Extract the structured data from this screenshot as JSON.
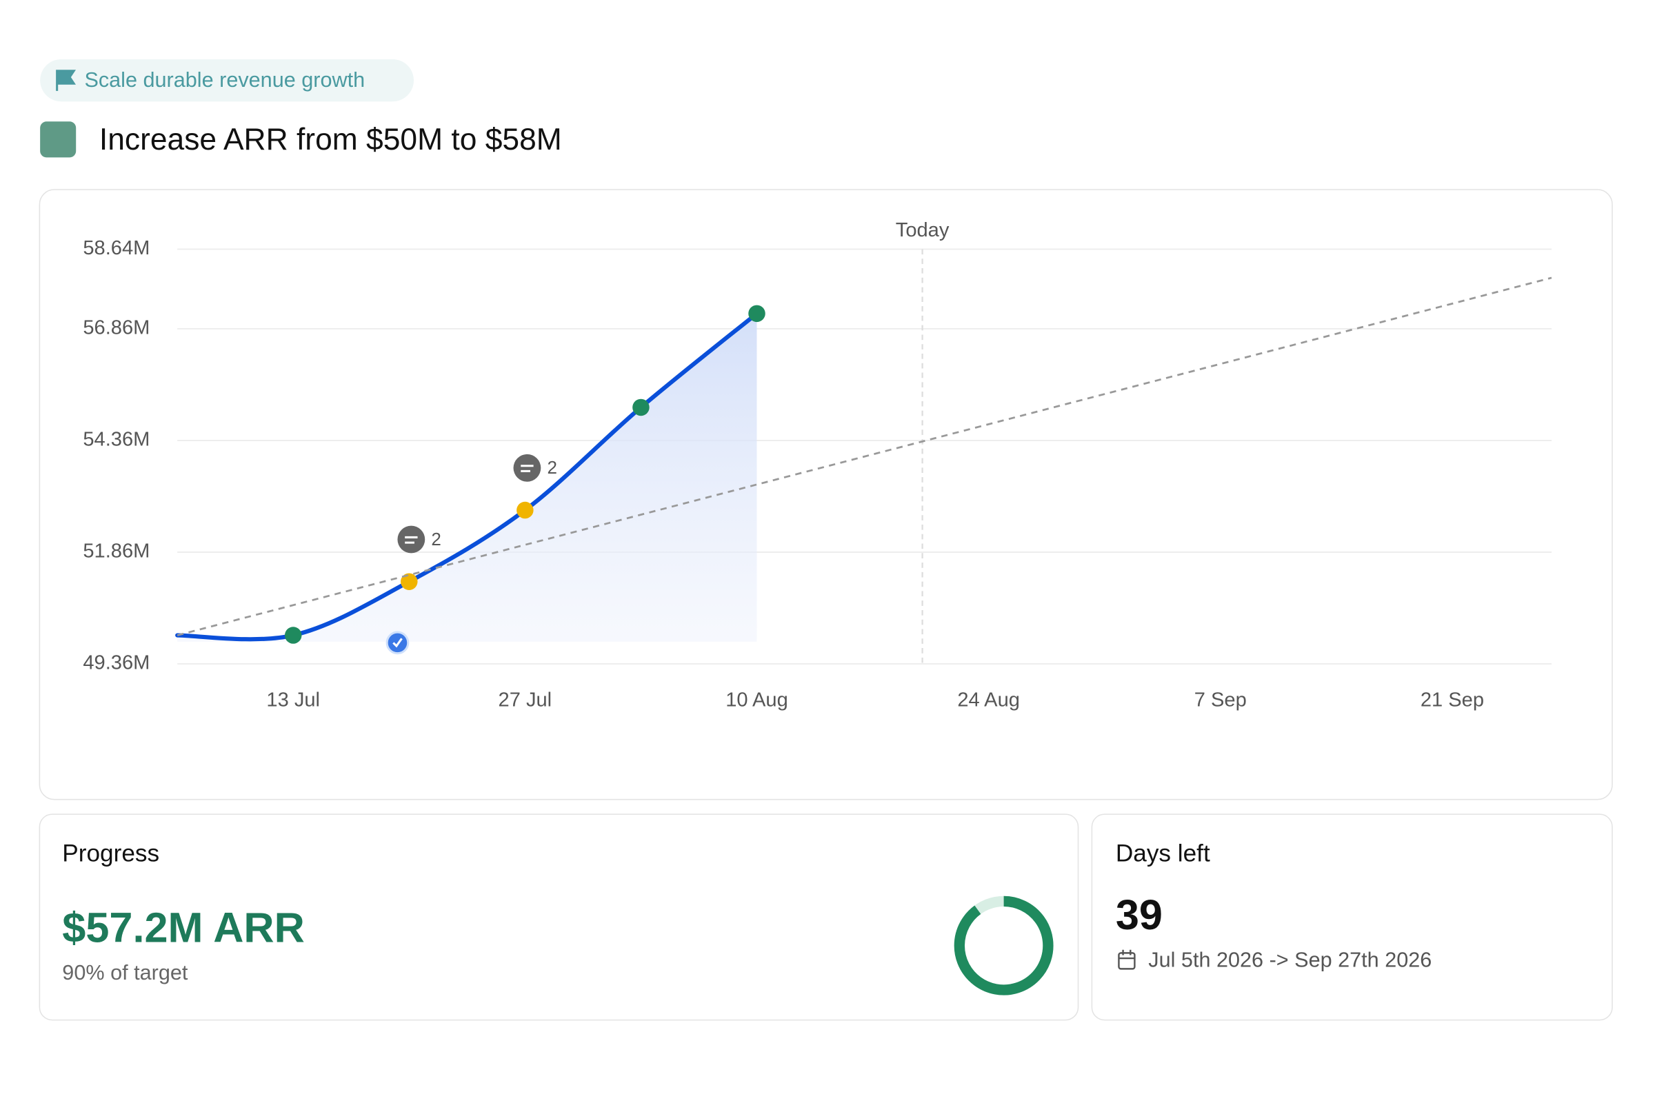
{
  "header": {
    "tag": "Scale durable revenue growth",
    "title": "Increase ARR from $50M to $58M"
  },
  "chart_data": {
    "type": "line",
    "xlim": [
      "6 Jul",
      "27 Sep"
    ],
    "xticks": [
      "13 Jul",
      "27 Jul",
      "10 Aug",
      "24 Aug",
      "7 Sep",
      "21 Sep"
    ],
    "ylim": [
      49.36,
      58.64
    ],
    "yticks": [
      {
        "value": 49.36,
        "label": "49.36M"
      },
      {
        "value": 51.86,
        "label": "51.86M"
      },
      {
        "value": 54.36,
        "label": "54.36M"
      },
      {
        "value": 56.86,
        "label": "56.86M"
      },
      {
        "value": 58.64,
        "label": "58.64M"
      }
    ],
    "grid": true,
    "series": [
      {
        "x": [
          "6 Jul",
          "13 Jul",
          "20 Jul",
          "27 Jul",
          "3 Aug",
          "10 Aug"
        ],
        "values": [
          50.0,
          50.0,
          51.2,
          52.8,
          55.1,
          57.2
        ],
        "color": "#0a4fd9",
        "point_colors": [
          null,
          "#1f8a5e",
          "#f0b400",
          "#f0b400",
          "#1f8a5e",
          "#1f8a5e"
        ]
      },
      {
        "x": [
          "6 Jul",
          "27 Sep"
        ],
        "values": [
          50.0,
          58.0
        ],
        "color": "#999999",
        "dashed": true
      }
    ],
    "today": {
      "x": "20 Aug",
      "label": "Today"
    },
    "comments": [
      {
        "x": "20 Jul",
        "count": 2
      },
      {
        "x": "27 Jul",
        "count": 2
      }
    ],
    "checkins": [
      "20 Jul"
    ]
  },
  "progress": {
    "label": "Progress",
    "value": "$57.2M ARR",
    "percent": 90,
    "percent_label": "90% of target"
  },
  "days_left": {
    "label": "Days left",
    "value": 39,
    "range": "Jul 5th 2026 -> Sep 27th 2026"
  }
}
